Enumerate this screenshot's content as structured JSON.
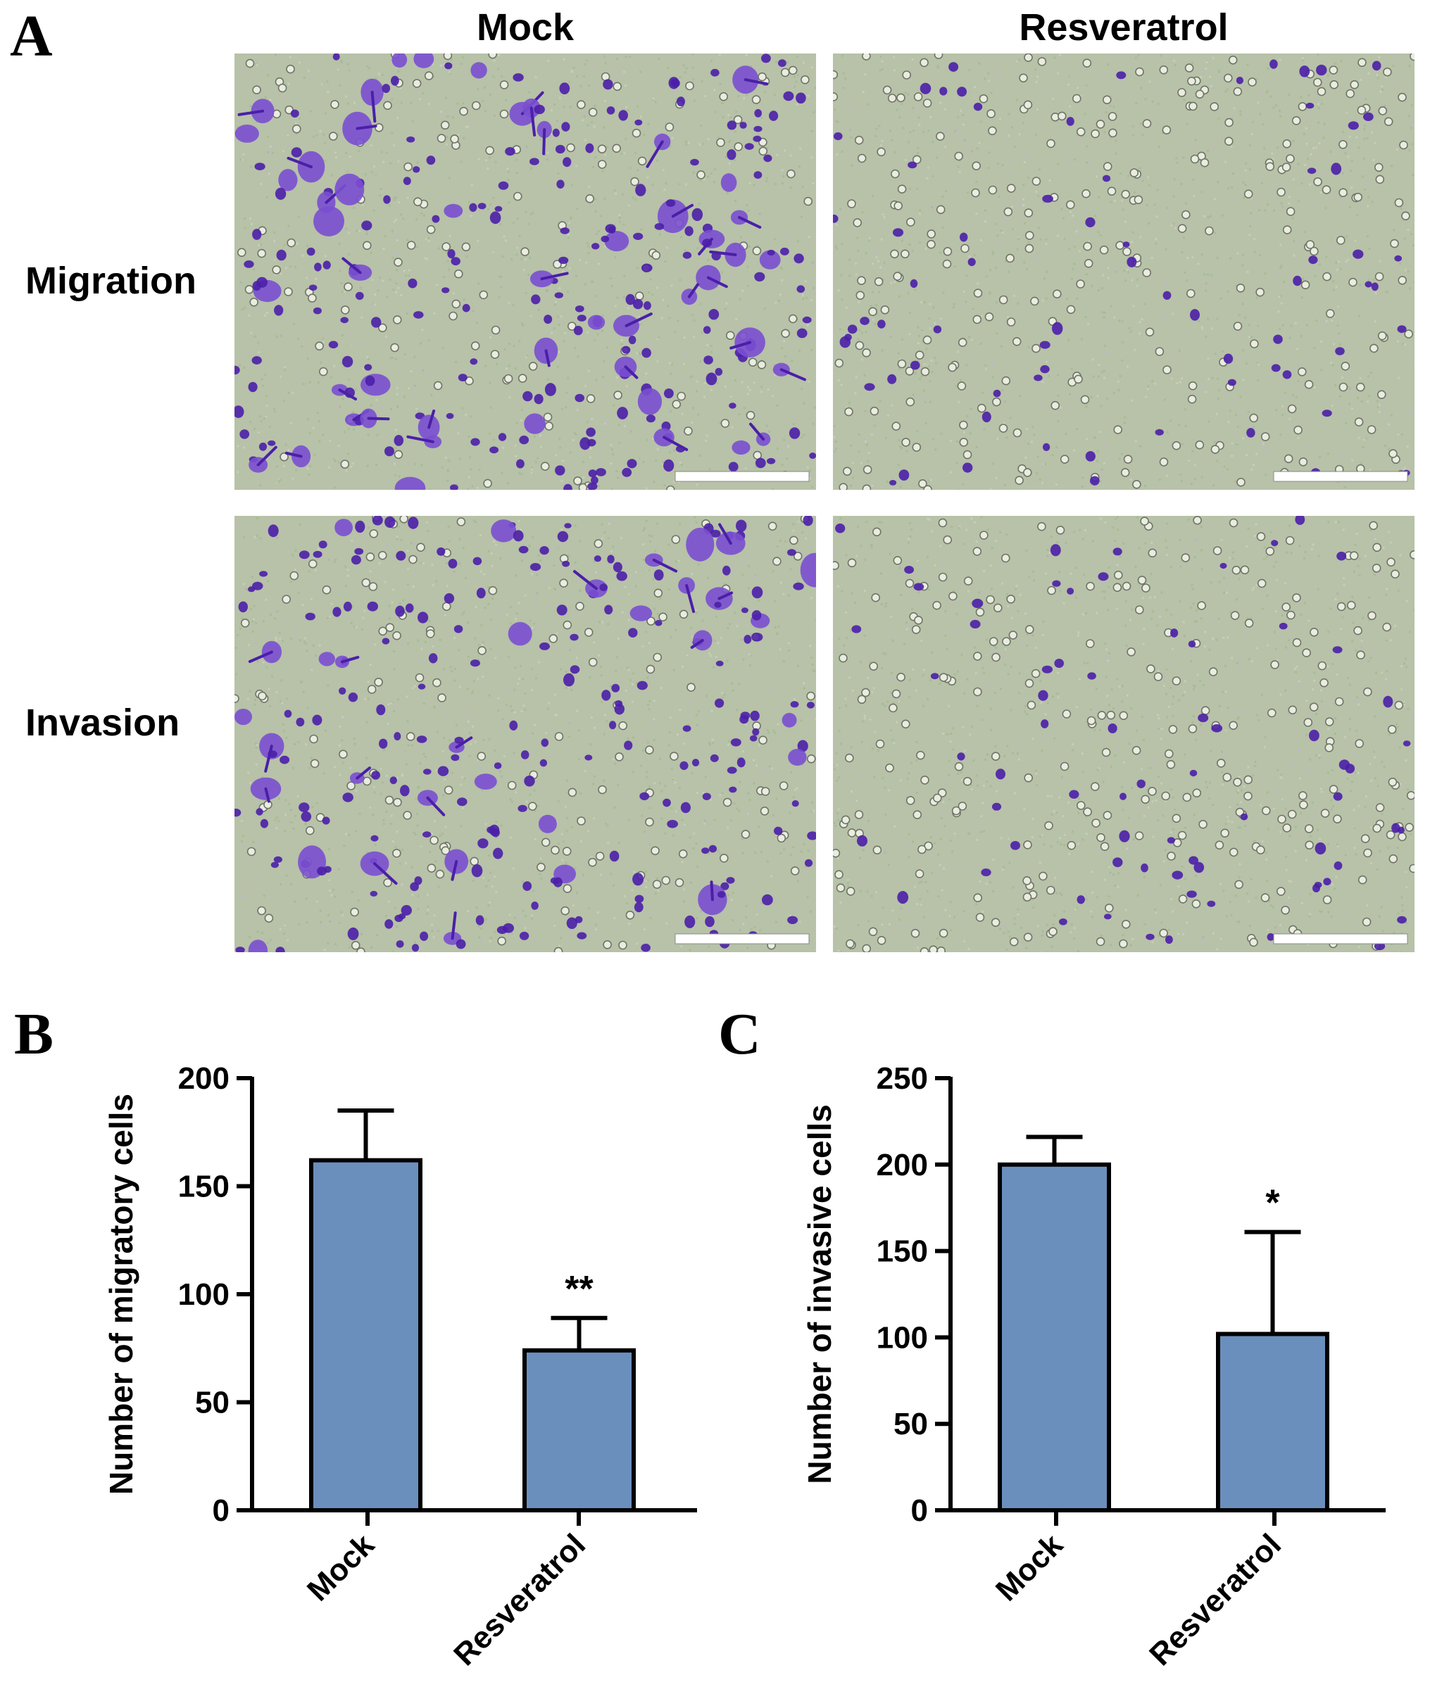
{
  "panel_labels": [
    "A",
    "B",
    "C"
  ],
  "micrographs": {
    "columns": [
      "Mock",
      "Resveratrol"
    ],
    "rows": [
      "Migration",
      "Invasion"
    ],
    "colors": {
      "background": "#b7c2a8",
      "stain": "#4b1fa8",
      "stain_light": "#7a4fd0",
      "pore": "#e8ede0",
      "pore_ring": "#6f7466",
      "scale_bar": "#ffffff"
    }
  },
  "colors": {
    "bar_fill": "#6b8fbd",
    "bar_stroke": "#000000",
    "axis": "#000000"
  },
  "chart_data": [
    {
      "type": "bar",
      "panel": "B",
      "categories": [
        "Mock",
        "Resveratrol"
      ],
      "values": [
        162,
        74
      ],
      "errors": [
        23,
        15
      ],
      "significance": [
        "",
        "**"
      ],
      "title": "",
      "xlabel": "",
      "ylabel": "Number of migratory cells",
      "ylim": [
        0,
        200
      ],
      "yticks": [
        0,
        50,
        100,
        150,
        200
      ],
      "grid": false
    },
    {
      "type": "bar",
      "panel": "C",
      "categories": [
        "Mock",
        "Resveratrol"
      ],
      "values": [
        200,
        102
      ],
      "errors": [
        16,
        59
      ],
      "significance": [
        "",
        "*"
      ],
      "title": "",
      "xlabel": "",
      "ylabel": "Number of invasive cells",
      "ylim": [
        0,
        250
      ],
      "yticks": [
        0,
        50,
        100,
        150,
        200,
        250
      ],
      "grid": false
    }
  ]
}
